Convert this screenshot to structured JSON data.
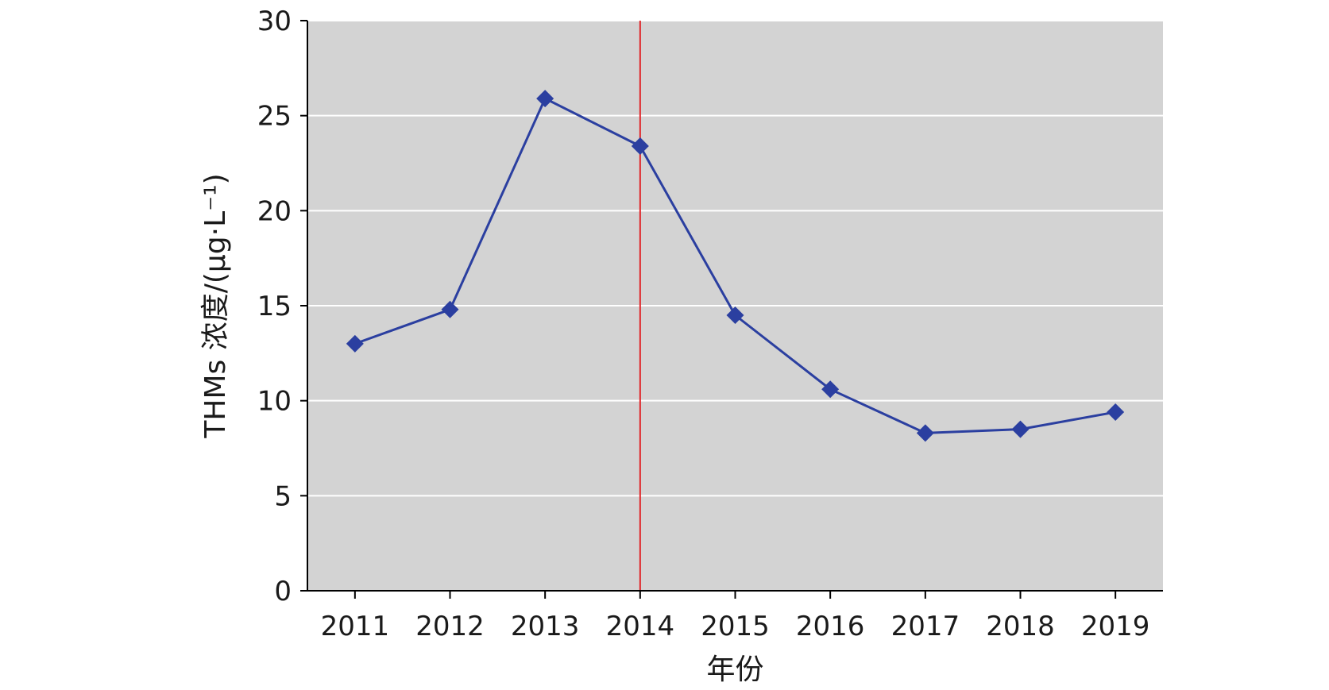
{
  "chart_data": {
    "type": "line",
    "title": "",
    "xlabel": "年份",
    "ylabel": "THMs 浓度/(μg·L⁻¹)",
    "categories": [
      "2011",
      "2012",
      "2013",
      "2014",
      "2015",
      "2016",
      "2017",
      "2018",
      "2019"
    ],
    "series": [
      {
        "values": [
          13.0,
          14.8,
          25.9,
          23.4,
          14.5,
          10.6,
          8.3,
          8.5,
          9.4
        ],
        "color": "#2b3fa0",
        "marker": "diamond"
      }
    ],
    "ylim": [
      0,
      30
    ],
    "yticks": [
      "0",
      "5",
      "10",
      "15",
      "20",
      "25",
      "30"
    ],
    "grid": "horizontal",
    "plot_background": "#d3d3d3",
    "reference_line": {
      "x": "2014",
      "color": "#e0262a"
    },
    "legend": "none"
  }
}
